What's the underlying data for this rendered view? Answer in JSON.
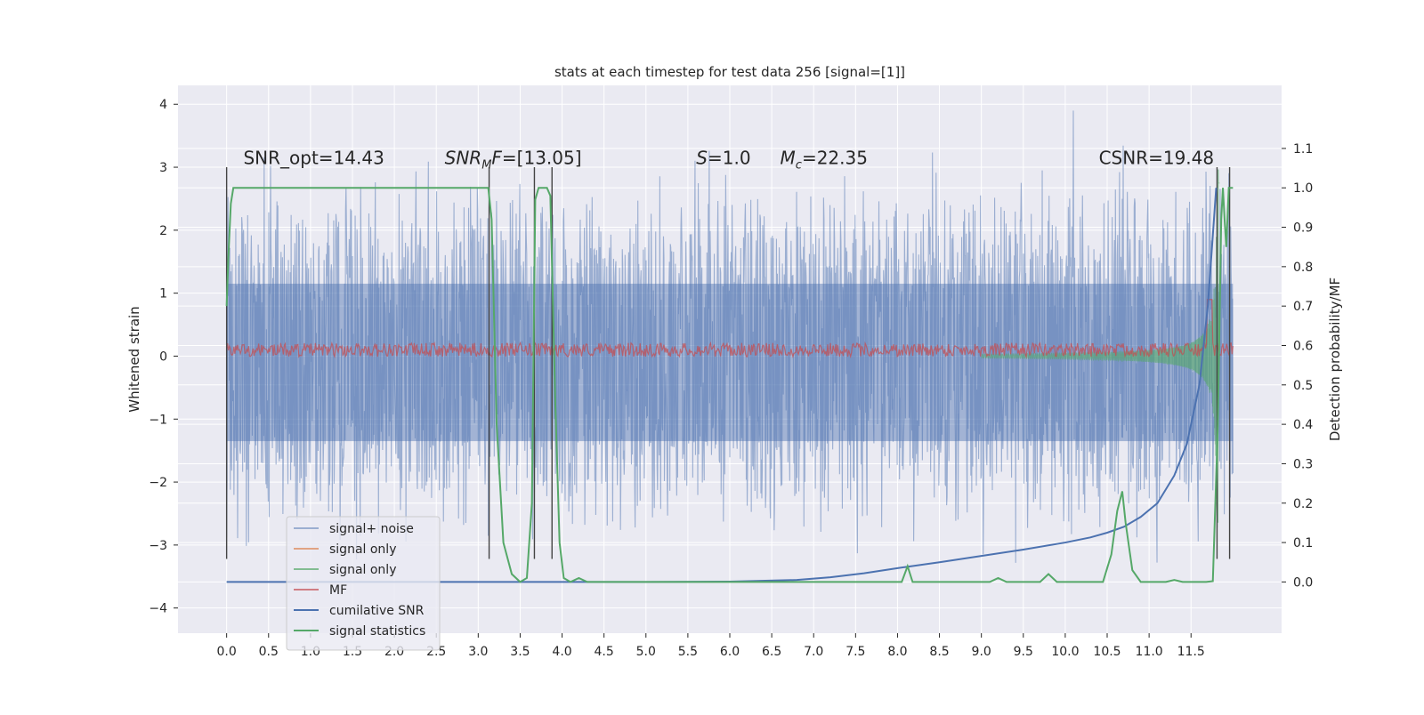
{
  "chart_data": {
    "type": "line",
    "title": "stats at each timestep for test data 256 [signal=[1]]",
    "xlabel": "",
    "ylabel": "Whitened strain",
    "y2label": "Detection probability/MF",
    "xlim": [
      -0.58,
      12.58
    ],
    "ylim": [
      -4.4,
      4.3
    ],
    "y2lim": [
      -0.13,
      1.26
    ],
    "grid": true,
    "x_ticks": [
      0.0,
      0.5,
      1.0,
      1.5,
      2.0,
      2.5,
      3.0,
      3.5,
      4.0,
      4.5,
      5.0,
      5.5,
      6.0,
      6.5,
      7.0,
      7.5,
      8.0,
      8.5,
      9.0,
      9.5,
      10.0,
      10.5,
      11.0,
      11.5
    ],
    "x_tick_labels": [
      "0.0",
      "0.5",
      "1.0",
      "1.5",
      "2.0",
      "2.5",
      "3.0",
      "3.5",
      "4.0",
      "4.5",
      "5.0",
      "5.5",
      "6.0",
      "6.5",
      "7.0",
      "7.5",
      "8.0",
      "8.5",
      "9.0",
      "9.5",
      "10.0",
      "10.5",
      "11.0",
      "11.5"
    ],
    "y_ticks": [
      -4,
      -3,
      -2,
      -1,
      0,
      1,
      2,
      3,
      4
    ],
    "y_tick_labels": [
      "−4",
      "−3",
      "−2",
      "−1",
      "0",
      "1",
      "2",
      "3",
      "4"
    ],
    "y2_ticks": [
      0.0,
      0.1,
      0.2,
      0.3,
      0.4,
      0.5,
      0.6,
      0.7,
      0.8,
      0.9,
      1.0,
      1.1
    ],
    "y2_tick_labels": [
      "0.0",
      "0.1",
      "0.2",
      "0.3",
      "0.4",
      "0.5",
      "0.6",
      "0.7",
      "0.8",
      "0.9",
      "1.0",
      "1.1"
    ],
    "annotations": [
      {
        "parts": [
          {
            "t": "SNR_opt=14.43"
          }
        ],
        "x": 0.2,
        "y": 3.05
      },
      {
        "parts": [
          {
            "t": "SNR",
            "i": true
          },
          {
            "t": "M",
            "i": true,
            "sub": true
          },
          {
            "t": "F",
            "i": true
          },
          {
            "t": "=[13.05]"
          }
        ],
        "x": 2.6,
        "y": 3.05
      },
      {
        "parts": [
          {
            "t": "S",
            "i": true
          },
          {
            "t": "=1.0"
          }
        ],
        "x": 5.6,
        "y": 3.05
      },
      {
        "parts": [
          {
            "t": "M",
            "i": true
          },
          {
            "t": "c",
            "i": true,
            "sub": true
          },
          {
            "t": "=22.35"
          }
        ],
        "x": 6.6,
        "y": 3.05
      },
      {
        "parts": [
          {
            "t": "CSNR=19.48"
          }
        ],
        "x": 10.4,
        "y": 3.05
      }
    ],
    "legend": {
      "placement": "lower-left",
      "entries": [
        {
          "label": "signal+ noise",
          "color": "#4c72b0",
          "alpha": 0.5
        },
        {
          "label": "signal only",
          "color": "#dd8452",
          "alpha": 0.7
        },
        {
          "label": "signal only",
          "color": "#55a868",
          "alpha": 0.7
        },
        {
          "label": "MF",
          "color": "#c44e52",
          "alpha": 0.7
        },
        {
          "label": "cumilative SNR",
          "color": "#4c72b0",
          "alpha": 1
        },
        {
          "label": "signal statistics",
          "color": "#55a868",
          "alpha": 1
        }
      ]
    },
    "series": [
      {
        "name": "signal+ noise",
        "axis": "left",
        "kind": "noise",
        "color": "#4c72b0",
        "x_range": [
          0,
          12
        ],
        "amplitude_max": 3.9
      },
      {
        "name": "signal only",
        "axis": "left",
        "kind": "chirp",
        "color": "#55a868",
        "x_range": [
          0,
          11.83
        ],
        "merger_x": 11.83
      },
      {
        "name": "MF",
        "axis": "left",
        "kind": "band",
        "color": "#c44e52",
        "x_range": [
          0,
          12
        ],
        "level": 0.1
      },
      {
        "name": "cumilative SNR",
        "axis": "right",
        "color": "#4c72b0",
        "x": [
          0,
          5.0,
          6.0,
          6.8,
          7.2,
          7.6,
          8.0,
          8.5,
          9.0,
          9.5,
          10.0,
          10.3,
          10.5,
          10.7,
          10.9,
          11.1,
          11.3,
          11.45,
          11.6,
          11.7,
          11.76,
          11.8
        ],
        "y": [
          0,
          0,
          0.001,
          0.005,
          0.012,
          0.022,
          0.035,
          0.05,
          0.066,
          0.082,
          0.1,
          0.113,
          0.125,
          0.14,
          0.165,
          0.2,
          0.27,
          0.35,
          0.5,
          0.7,
          0.88,
          1.0
        ]
      },
      {
        "name": "signal statistics",
        "axis": "right",
        "color": "#55a868",
        "x": [
          0,
          0.02,
          0.05,
          0.08,
          0.1,
          3.12,
          3.16,
          3.22,
          3.3,
          3.4,
          3.5,
          3.58,
          3.64,
          3.68,
          3.72,
          3.82,
          3.86,
          3.92,
          3.97,
          4.02,
          4.1,
          4.2,
          4.3,
          8.05,
          8.12,
          8.18,
          8.25,
          9.1,
          9.2,
          9.3,
          9.7,
          9.8,
          9.9,
          10.45,
          10.55,
          10.62,
          10.68,
          10.72,
          10.8,
          10.9,
          11.2,
          11.3,
          11.4,
          11.58,
          11.68,
          11.76,
          11.82,
          11.86,
          11.88,
          11.9,
          11.92,
          11.95,
          12.0
        ],
        "y": [
          0.7,
          0.82,
          0.96,
          1.0,
          1.0,
          1.0,
          0.92,
          0.4,
          0.1,
          0.02,
          0.0,
          0.01,
          0.2,
          0.97,
          1.0,
          1.0,
          0.98,
          0.45,
          0.1,
          0.01,
          0.0,
          0.01,
          0.0,
          0.0,
          0.04,
          0.0,
          0.0,
          0.0,
          0.01,
          0.0,
          0.0,
          0.02,
          0.0,
          0.0,
          0.07,
          0.18,
          0.23,
          0.15,
          0.03,
          0.0,
          0.0,
          0.005,
          0.0,
          0.0,
          0.0,
          0.002,
          0.4,
          0.92,
          1.0,
          0.92,
          0.85,
          1.0,
          1.0
        ]
      }
    ],
    "markers": {
      "color": "#444444",
      "bands": [
        {
          "x1": 3.13,
          "x2": 3.88,
          "x_inner": 3.67,
          "y1": -3.22,
          "y2": 3.0
        }
      ],
      "start_x": 0.0,
      "end_x1": 11.81,
      "end_x2": 11.96
    }
  }
}
